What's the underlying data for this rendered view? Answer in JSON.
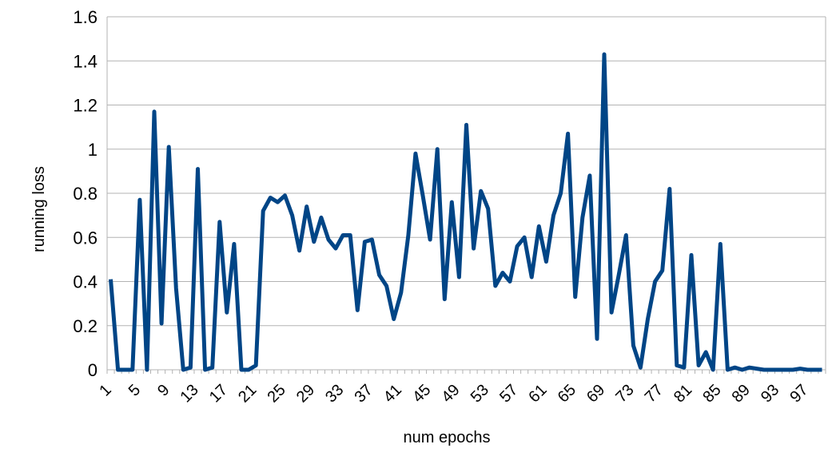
{
  "chart_data": {
    "type": "line",
    "title": "",
    "xlabel": "num epochs",
    "ylabel": "running loss",
    "ylim": [
      0,
      1.6
    ],
    "yticks": [
      "0",
      "0.2",
      "0.4",
      "0.6",
      "0.8",
      "1",
      "1.2",
      "1.4",
      "1.6"
    ],
    "xtick_labels": [
      "1",
      "5",
      "9",
      "13",
      "17",
      "21",
      "25",
      "29",
      "33",
      "37",
      "41",
      "45",
      "49",
      "53",
      "57",
      "61",
      "65",
      "69",
      "73",
      "77",
      "81",
      "85",
      "89",
      "93",
      "97"
    ],
    "grid": true,
    "line_color": "#004586",
    "series": [
      {
        "values": [
          0.41,
          0.0,
          0.0,
          0.0,
          0.77,
          0.0,
          1.17,
          0.21,
          1.01,
          0.37,
          0.0,
          0.01,
          0.91,
          0.0,
          0.01,
          0.67,
          0.26,
          0.57,
          0.0,
          0.0,
          0.02,
          0.72,
          0.78,
          0.76,
          0.79,
          0.7,
          0.54,
          0.74,
          0.58,
          0.69,
          0.59,
          0.55,
          0.61,
          0.61,
          0.27,
          0.58,
          0.59,
          0.43,
          0.38,
          0.23,
          0.35,
          0.61,
          0.98,
          0.79,
          0.59,
          1.0,
          0.32,
          0.76,
          0.42,
          1.11,
          0.55,
          0.81,
          0.73,
          0.38,
          0.44,
          0.4,
          0.56,
          0.6,
          0.42,
          0.65,
          0.49,
          0.7,
          0.8,
          1.07,
          0.33,
          0.69,
          0.88,
          0.14,
          1.43,
          0.26,
          0.43,
          0.61,
          0.11,
          0.01,
          0.23,
          0.4,
          0.45,
          0.82,
          0.02,
          0.01,
          0.52,
          0.02,
          0.08,
          0.0,
          0.57,
          0.0,
          0.01,
          0.0,
          0.01,
          0.005,
          0.0,
          0.0,
          0.0,
          0.0,
          0.0,
          0.005,
          0.0,
          0.0,
          0.0
        ]
      }
    ]
  }
}
